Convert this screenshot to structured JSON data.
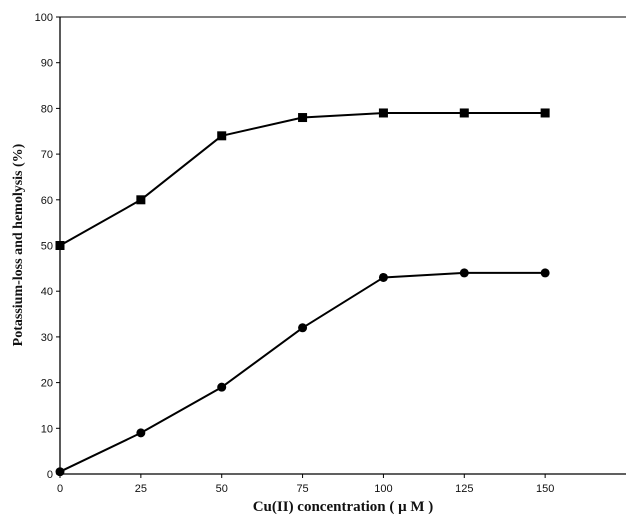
{
  "chart_data": {
    "type": "line",
    "title": "",
    "xlabel": "Cu(II) concentration ( μ M )",
    "ylabel": "Potassium-loss and hemolysis (%)",
    "xlim": [
      0,
      175
    ],
    "ylim": [
      0,
      100
    ],
    "xticks": [
      0,
      25,
      50,
      75,
      100,
      125,
      150
    ],
    "yticks": [
      0,
      10,
      20,
      30,
      40,
      50,
      60,
      70,
      80,
      90,
      100
    ],
    "grid": false,
    "legend": "none",
    "x": [
      0,
      25,
      50,
      75,
      100,
      125,
      150
    ],
    "series": [
      {
        "marker": "square",
        "color": "#000000",
        "values": [
          50,
          60,
          74,
          78,
          79,
          79,
          79
        ]
      },
      {
        "marker": "circle",
        "color": "#000000",
        "values": [
          0.5,
          9,
          19,
          32,
          43,
          44,
          44
        ]
      }
    ]
  }
}
